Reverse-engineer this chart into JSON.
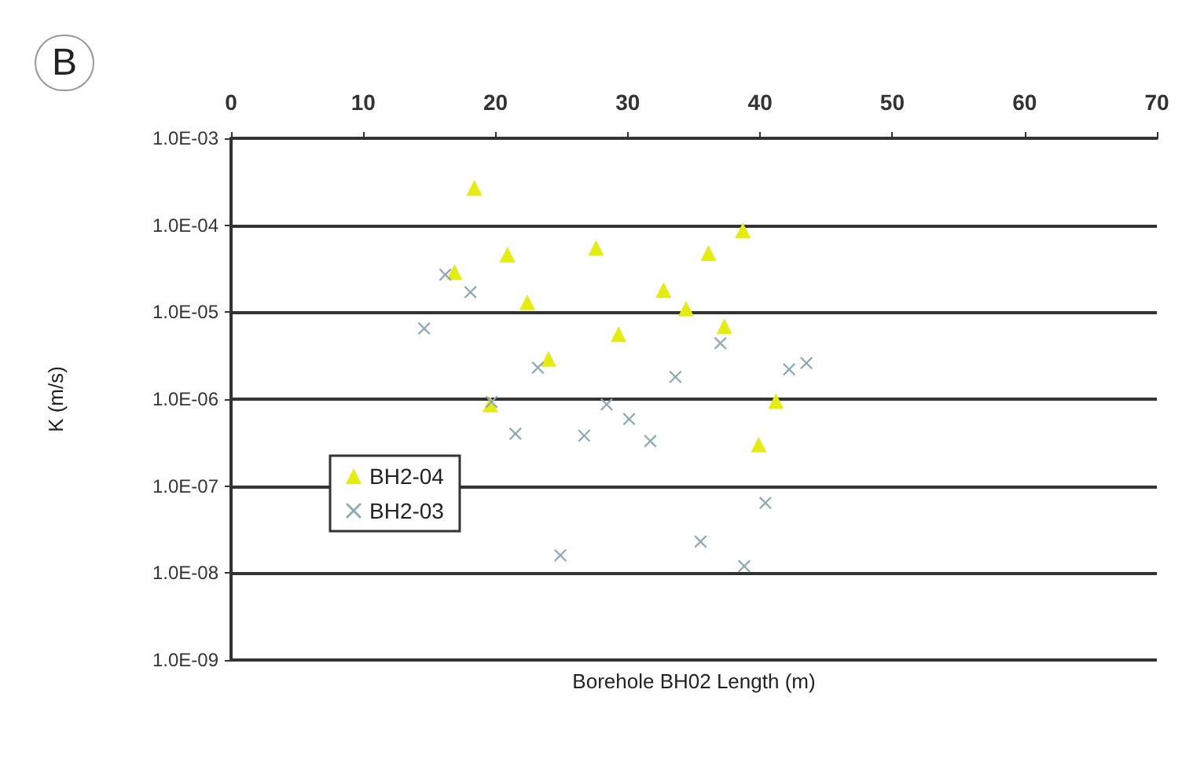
{
  "chart_data": {
    "type": "scatter",
    "xlabel": "Borehole BH02 Length (m)",
    "ylabel": "K (m/s)",
    "annotations": [
      "B"
    ],
    "xlim": [
      0,
      70
    ],
    "xticks": [
      0,
      10,
      20,
      30,
      40,
      50,
      60,
      70
    ],
    "ylim": [
      1e-09,
      0.001
    ],
    "yticks": [
      {
        "value": 1e-09,
        "label": "1.0E-09"
      },
      {
        "value": 1e-08,
        "label": "1.0E-08"
      },
      {
        "value": 1e-07,
        "label": "1.0E-07"
      },
      {
        "value": 1e-06,
        "label": "1.0E-06"
      },
      {
        "value": 1e-05,
        "label": "1.0E-05"
      },
      {
        "value": 0.0001,
        "label": "1.0E-04"
      },
      {
        "value": 0.001,
        "label": "1.0E-03"
      }
    ],
    "log": "y",
    "grid": "y",
    "legend": "left",
    "series": [
      {
        "name": "BH2-04",
        "color": "#e4ec10",
        "marker": "triangle",
        "x": [
          18.4,
          20.9,
          27.6,
          16.9,
          22.4,
          32.7,
          34.4,
          29.3,
          24.0,
          19.6,
          38.7,
          36.1,
          37.3,
          41.2,
          39.9
        ],
        "values": [
          0.00027,
          4.6e-05,
          5.5e-05,
          2.9e-05,
          1.3e-05,
          1.8e-05,
          1.1e-05,
          5.6e-06,
          2.9e-06,
          8.7e-07,
          8.7e-05,
          4.8e-05,
          6.9e-06,
          9.5e-07,
          3e-07
        ]
      },
      {
        "name": "BH2-03",
        "color": "#8ea9b6",
        "marker": "cross",
        "x": [
          16.2,
          18.1,
          14.6,
          23.2,
          33.6,
          19.7,
          28.4,
          30.1,
          21.5,
          26.7,
          31.7,
          24.9,
          37.0,
          42.2,
          43.5,
          40.4,
          35.5,
          38.8
        ],
        "values": [
          2.7e-05,
          1.7e-05,
          6.5e-06,
          2.3e-06,
          1.8e-06,
          9.3e-07,
          8.7e-07,
          5.9e-07,
          4e-07,
          3.8e-07,
          3.3e-07,
          1.6e-08,
          4.4e-06,
          2.2e-06,
          2.6e-06,
          6.4e-08,
          2.3e-08,
          1.2e-08
        ]
      }
    ]
  }
}
